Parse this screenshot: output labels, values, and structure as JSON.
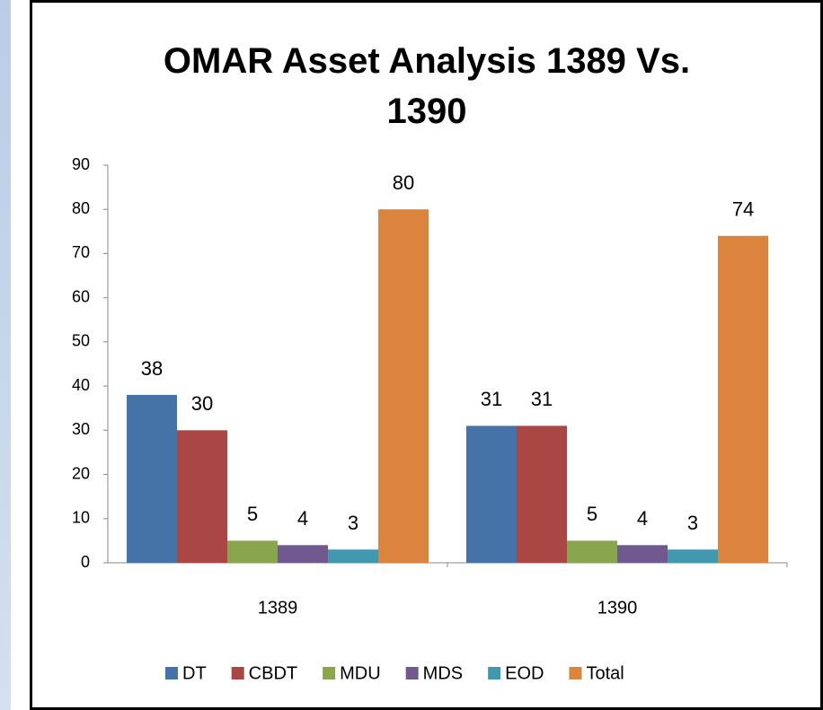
{
  "chart_data": {
    "type": "bar",
    "title": "OMAR Asset Analysis 1389 Vs. 1390",
    "categories": [
      "1389",
      "1390"
    ],
    "series": [
      {
        "name": "DT",
        "color": "#4572a7",
        "values": [
          38,
          31
        ]
      },
      {
        "name": "CBDT",
        "color": "#aa4643",
        "values": [
          30,
          31
        ]
      },
      {
        "name": "MDU",
        "color": "#89a54e",
        "values": [
          5,
          5
        ]
      },
      {
        "name": "MDS",
        "color": "#71588f",
        "values": [
          4,
          4
        ]
      },
      {
        "name": "EOD",
        "color": "#4198af",
        "values": [
          3,
          3
        ]
      },
      {
        "name": "Total",
        "color": "#db843d",
        "values": [
          80,
          74
        ]
      }
    ],
    "ylim": [
      0,
      90
    ],
    "yticks": [
      0,
      10,
      20,
      30,
      40,
      50,
      60,
      70,
      80,
      90
    ],
    "grid": false,
    "legend": "bottom"
  }
}
